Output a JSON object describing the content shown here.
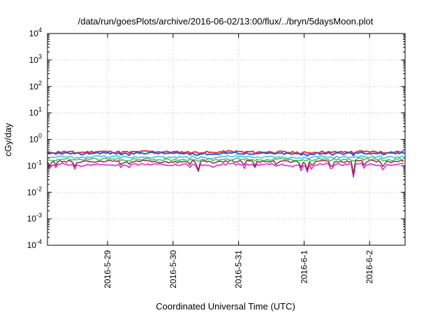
{
  "chart_data": {
    "type": "line",
    "title": "/data/run/goesPlots/archive/2016-06-02/13:00/flux/../bryn/5daysMoon.plot",
    "xlabel": "Coordinated Universal Time (UTC)",
    "ylabel": "cGy/day",
    "yscale": "log",
    "ylim": [
      0.0001,
      10000
    ],
    "y_ticks": [
      {
        "value": 0.0001,
        "base": "10",
        "exp": "-4"
      },
      {
        "value": 0.001,
        "base": "10",
        "exp": "-3"
      },
      {
        "value": 0.01,
        "base": "10",
        "exp": "-2"
      },
      {
        "value": 0.1,
        "base": "10",
        "exp": "-1"
      },
      {
        "value": 1,
        "base": "10",
        "exp": "0"
      },
      {
        "value": 10,
        "base": "10",
        "exp": "1"
      },
      {
        "value": 100,
        "base": "10",
        "exp": "2"
      },
      {
        "value": 1000,
        "base": "10",
        "exp": "3"
      },
      {
        "value": 10000,
        "base": "10",
        "exp": "4"
      }
    ],
    "xlim": [
      "2016-05-28 02:00",
      "2016-06-02 13:00"
    ],
    "x_ticks": [
      "2016-5-29",
      "2016-5-30",
      "2016-5-31",
      "2016-6-1",
      "2016-6-2"
    ],
    "grid": true,
    "x_samples": [
      "2016-05-28 02:00",
      "2016-05-28 08:00",
      "2016-05-28 14:00",
      "2016-05-28 20:00",
      "2016-05-29 02:00",
      "2016-05-29 08:00",
      "2016-05-29 14:00",
      "2016-05-29 20:00",
      "2016-05-30 02:00",
      "2016-05-30 08:00",
      "2016-05-30 14:00",
      "2016-05-30 20:00",
      "2016-05-31 02:00",
      "2016-05-31 08:00",
      "2016-05-31 14:00",
      "2016-05-31 20:00",
      "2016-06-01 02:00",
      "2016-06-01 08:00",
      "2016-06-01 14:00",
      "2016-06-01 20:00",
      "2016-06-02 02:00",
      "2016-06-02 08:00",
      "2016-06-02 13:00"
    ],
    "series": [
      {
        "color": "#e8352c",
        "values": [
          0.33,
          0.34,
          0.32,
          0.35,
          0.34,
          0.33,
          0.35,
          0.34,
          0.33,
          0.34,
          0.32,
          0.35,
          0.34,
          0.33,
          0.34,
          0.32,
          0.33,
          0.34,
          0.33,
          0.35,
          0.34,
          0.33,
          0.35
        ]
      },
      {
        "color": "#2b57e0",
        "values": [
          0.29,
          0.3,
          0.28,
          0.31,
          0.3,
          0.29,
          0.31,
          0.3,
          0.29,
          0.3,
          0.28,
          0.31,
          0.3,
          0.29,
          0.3,
          0.28,
          0.29,
          0.3,
          0.29,
          0.31,
          0.3,
          0.29,
          0.31
        ]
      },
      {
        "color": "#2fc1e0",
        "values": [
          0.21,
          0.22,
          0.2,
          0.23,
          0.22,
          0.21,
          0.22,
          0.21,
          0.21,
          0.22,
          0.2,
          0.23,
          0.22,
          0.21,
          0.22,
          0.2,
          0.21,
          0.22,
          0.21,
          0.23,
          0.22,
          0.21,
          0.23
        ]
      },
      {
        "color": "#3fbf5f",
        "values": [
          0.17,
          0.18,
          0.17,
          0.18,
          0.18,
          0.17,
          0.18,
          0.17,
          0.17,
          0.18,
          0.17,
          0.18,
          0.18,
          0.17,
          0.18,
          0.17,
          0.17,
          0.18,
          0.17,
          0.18,
          0.18,
          0.17,
          0.18
        ]
      },
      {
        "color": "#8a2a3a",
        "values": [
          0.14,
          0.15,
          0.14,
          0.15,
          0.15,
          0.14,
          0.15,
          0.14,
          0.14,
          0.15,
          0.14,
          0.15,
          0.15,
          0.14,
          0.15,
          0.14,
          0.14,
          0.15,
          0.14,
          0.15,
          0.15,
          0.14,
          0.15
        ]
      },
      {
        "color": "#e020e0",
        "values": [
          0.11,
          0.12,
          0.1,
          0.12,
          0.11,
          0.11,
          0.12,
          0.11,
          0.11,
          0.12,
          0.1,
          0.12,
          0.11,
          0.11,
          0.12,
          0.1,
          0.11,
          0.12,
          0.11,
          0.12,
          0.11,
          0.11,
          0.12
        ]
      }
    ],
    "dips": [
      {
        "x": "2016-05-28 03:00",
        "y": 0.065
      },
      {
        "x": "2016-05-28 05:00",
        "y": 0.075
      },
      {
        "x": "2016-05-28 12:00",
        "y": 0.075
      },
      {
        "x": "2016-05-29 05:00",
        "y": 0.078
      },
      {
        "x": "2016-05-29 08:00",
        "y": 0.08
      },
      {
        "x": "2016-05-30 06:00",
        "y": 0.07
      },
      {
        "x": "2016-05-30 09:00",
        "y": 0.024
      },
      {
        "x": "2016-05-30 15:00",
        "y": 0.075
      },
      {
        "x": "2016-05-31 02:00",
        "y": 0.07
      },
      {
        "x": "2016-05-31 06:00",
        "y": 0.08
      },
      {
        "x": "2016-05-31 14:00",
        "y": 0.065
      },
      {
        "x": "2016-05-31 23:00",
        "y": 0.058
      },
      {
        "x": "2016-06-01 01:00",
        "y": 0.042
      },
      {
        "x": "2016-06-01 03:00",
        "y": 0.065
      },
      {
        "x": "2016-06-01 10:00",
        "y": 0.05
      },
      {
        "x": "2016-06-01 18:00",
        "y": 0.03
      },
      {
        "x": "2016-06-01 22:00",
        "y": 0.075
      },
      {
        "x": "2016-06-02 05:00",
        "y": 0.065
      }
    ]
  }
}
